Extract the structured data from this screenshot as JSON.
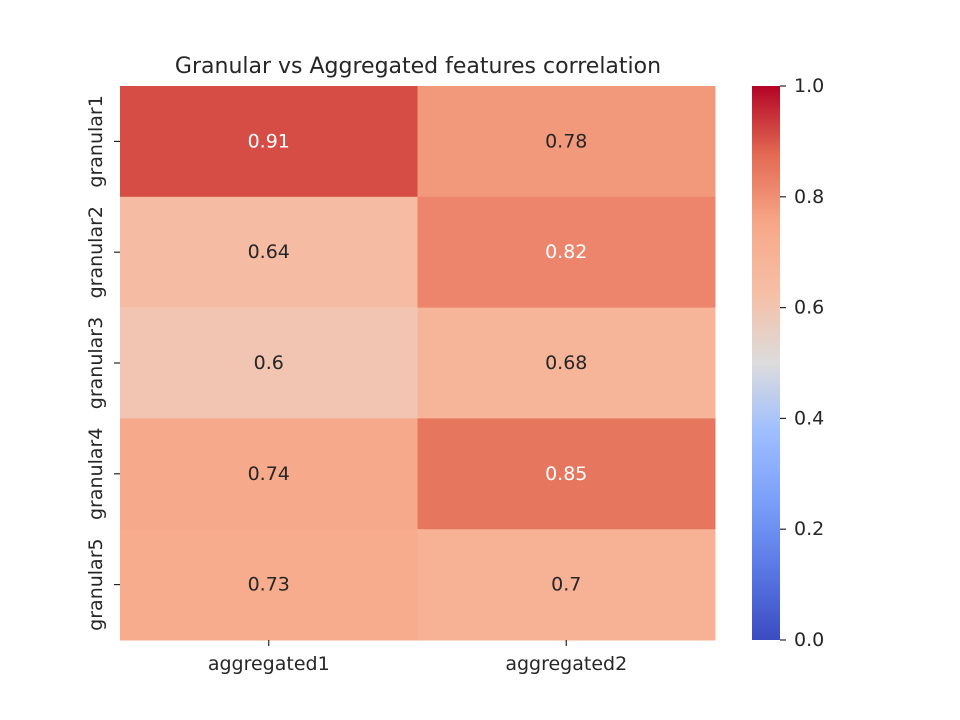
{
  "chart_data": {
    "type": "heatmap",
    "title": "Granular vs Aggregated features correlation",
    "x_categories": [
      "aggregated1",
      "aggregated2"
    ],
    "y_categories": [
      "granular1",
      "granular2",
      "granular3",
      "granular4",
      "granular5"
    ],
    "values": [
      [
        0.91,
        0.78
      ],
      [
        0.64,
        0.82
      ],
      [
        0.6,
        0.68
      ],
      [
        0.74,
        0.85
      ],
      [
        0.73,
        0.7
      ]
    ],
    "value_labels": [
      [
        "0.91",
        "0.78"
      ],
      [
        "0.64",
        "0.82"
      ],
      [
        "0.6",
        "0.68"
      ],
      [
        "0.74",
        "0.85"
      ],
      [
        "0.73",
        "0.7"
      ]
    ],
    "colormap": "coolwarm",
    "vmin": 0.0,
    "vmax": 1.0,
    "colorbar": {
      "ticks": [
        "0.0",
        "0.2",
        "0.4",
        "0.6",
        "0.8",
        "1.0"
      ],
      "tick_values": [
        0.0,
        0.2,
        0.4,
        0.6,
        0.8,
        1.0
      ],
      "placement": "right"
    },
    "colormap_stops": [
      [
        0.0,
        "#3b4cc0"
      ],
      [
        0.125,
        "#5977e3"
      ],
      [
        0.25,
        "#7b9ff9"
      ],
      [
        0.375,
        "#9ebeff"
      ],
      [
        0.5,
        "#dddcdc"
      ],
      [
        0.625,
        "#f6bfa6"
      ],
      [
        0.75,
        "#f7a889"
      ],
      [
        0.875,
        "#e36a53"
      ],
      [
        1.0,
        "#b40426"
      ]
    ],
    "text_colors": {
      "light": "#ffffff",
      "dark": "#262626"
    }
  }
}
